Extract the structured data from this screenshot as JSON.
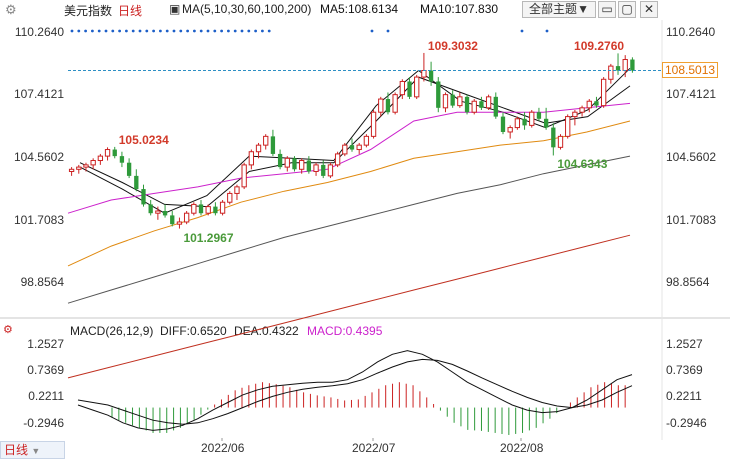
{
  "header": {
    "title": "美元指数",
    "period": "日线",
    "ma_label": "MA(5,10,30,60,100,200)",
    "ma5": "MA5:108.6134",
    "ma10": "MA10:107.830",
    "theme_button": "全部主题",
    "theme_button_arrow": "▼"
  },
  "macd_header": {
    "label": "MACD(26,12,9)",
    "diff": "DIFF:0.6520",
    "dea": "DEA:0.4322",
    "macd": "MACD:0.4395"
  },
  "footer": {
    "tab": "日线"
  },
  "colors": {
    "up": "#cc2222",
    "down": "#2e9a3a",
    "ma5": "#111111",
    "ma10": "#111111",
    "ma30": "#cc22cc",
    "ma60": "#e08a10",
    "ma100": "#555555",
    "ma200": "#c03020",
    "diff": "#111111",
    "dea": "#111111",
    "price_line": "#2d8fc4"
  },
  "chart_data": [
    {
      "type": "candlestick",
      "title": "美元指数",
      "y_ticks": [
        "110.2640",
        "107.4121",
        "104.5602",
        "101.7083",
        "98.8564"
      ],
      "ylim": [
        97.5,
        110.8
      ],
      "x_ticks": [
        "2022/06",
        "2022/07",
        "2022/08"
      ],
      "last_price": "108.5013",
      "annotations": [
        {
          "text": "105.0234",
          "kind": "high"
        },
        {
          "text": "101.2967",
          "kind": "low"
        },
        {
          "text": "109.3032",
          "kind": "high"
        },
        {
          "text": "104.6343",
          "kind": "low"
        },
        {
          "text": "109.2760",
          "kind": "high"
        }
      ],
      "ohlc": [
        [
          103.9,
          104.1,
          103.7,
          104.0
        ],
        [
          104.0,
          104.2,
          103.8,
          104.1
        ],
        [
          104.1,
          104.3,
          103.9,
          104.2
        ],
        [
          104.2,
          104.5,
          104.0,
          104.4
        ],
        [
          104.4,
          104.7,
          104.2,
          104.6
        ],
        [
          104.6,
          105.0,
          104.4,
          104.9
        ],
        [
          104.9,
          105.02,
          104.5,
          104.6
        ],
        [
          104.6,
          104.8,
          104.1,
          104.3
        ],
        [
          104.3,
          104.5,
          103.6,
          103.7
        ],
        [
          103.7,
          104.0,
          103.0,
          103.1
        ],
        [
          103.1,
          103.3,
          102.3,
          102.4
        ],
        [
          102.4,
          102.6,
          101.9,
          102.0
        ],
        [
          102.0,
          102.3,
          101.7,
          102.1
        ],
        [
          102.1,
          102.4,
          101.8,
          101.9
        ],
        [
          101.9,
          102.1,
          101.4,
          101.5
        ],
        [
          101.5,
          101.8,
          101.3,
          101.6
        ],
        [
          101.6,
          102.1,
          101.5,
          102.0
        ],
        [
          102.0,
          102.5,
          101.9,
          102.4
        ],
        [
          102.4,
          102.6,
          101.9,
          102.0
        ],
        [
          102.0,
          102.4,
          101.9,
          102.3
        ],
        [
          102.3,
          102.5,
          101.9,
          102.0
        ],
        [
          102.0,
          102.6,
          101.9,
          102.5
        ],
        [
          102.5,
          103.0,
          102.4,
          102.9
        ],
        [
          102.9,
          103.3,
          102.6,
          103.2
        ],
        [
          103.2,
          104.3,
          103.1,
          104.2
        ],
        [
          104.2,
          104.9,
          104.0,
          104.8
        ],
        [
          104.8,
          105.2,
          104.5,
          105.1
        ],
        [
          105.1,
          105.6,
          104.9,
          105.5
        ],
        [
          105.5,
          105.8,
          104.6,
          104.7
        ],
        [
          104.7,
          104.9,
          104.0,
          104.1
        ],
        [
          104.1,
          104.6,
          103.9,
          104.5
        ],
        [
          104.5,
          104.6,
          103.9,
          104.0
        ],
        [
          104.0,
          104.5,
          103.8,
          104.4
        ],
        [
          104.4,
          104.6,
          103.8,
          103.9
        ],
        [
          103.9,
          104.3,
          103.7,
          104.2
        ],
        [
          104.2,
          104.4,
          103.6,
          103.7
        ],
        [
          103.7,
          104.3,
          103.6,
          104.2
        ],
        [
          104.2,
          104.8,
          104.1,
          104.7
        ],
        [
          104.7,
          105.2,
          104.6,
          105.1
        ],
        [
          105.1,
          105.4,
          104.8,
          104.9
        ],
        [
          104.9,
          105.2,
          104.7,
          105.1
        ],
        [
          105.1,
          105.6,
          105.0,
          105.5
        ],
        [
          105.5,
          106.7,
          105.4,
          106.6
        ],
        [
          106.6,
          107.3,
          106.4,
          107.2
        ],
        [
          107.2,
          107.5,
          106.5,
          106.6
        ],
        [
          106.6,
          107.5,
          106.5,
          107.4
        ],
        [
          107.4,
          108.1,
          107.2,
          108.0
        ],
        [
          108.0,
          108.2,
          107.2,
          107.3
        ],
        [
          107.3,
          108.3,
          107.2,
          108.2
        ],
        [
          108.2,
          109.3,
          108.0,
          108.5
        ],
        [
          108.5,
          108.9,
          107.8,
          108.0
        ],
        [
          108.0,
          108.2,
          106.6,
          106.8
        ],
        [
          106.8,
          107.5,
          106.6,
          107.4
        ],
        [
          107.4,
          107.6,
          106.8,
          106.9
        ],
        [
          106.9,
          107.5,
          106.8,
          107.3
        ],
        [
          107.3,
          107.4,
          106.5,
          106.6
        ],
        [
          106.6,
          107.2,
          106.5,
          107.1
        ],
        [
          107.1,
          107.3,
          106.7,
          106.8
        ],
        [
          106.8,
          107.4,
          106.7,
          107.3
        ],
        [
          107.3,
          107.5,
          106.3,
          106.4
        ],
        [
          106.4,
          106.6,
          105.6,
          105.7
        ],
        [
          105.7,
          106.0,
          105.4,
          105.9
        ],
        [
          105.9,
          106.4,
          105.8,
          106.3
        ],
        [
          106.3,
          106.6,
          105.8,
          106.0
        ],
        [
          106.0,
          106.7,
          105.9,
          106.6
        ],
        [
          106.6,
          106.8,
          106.2,
          106.3
        ],
        [
          106.3,
          106.8,
          105.8,
          105.9
        ],
        [
          105.9,
          106.1,
          104.63,
          105.0
        ],
        [
          105.0,
          105.6,
          104.9,
          105.5
        ],
        [
          105.5,
          106.5,
          105.4,
          106.4
        ],
        [
          106.4,
          106.7,
          106.0,
          106.6
        ],
        [
          106.6,
          106.9,
          106.4,
          106.8
        ],
        [
          106.8,
          107.2,
          106.6,
          107.1
        ],
        [
          107.1,
          107.3,
          106.8,
          106.9
        ],
        [
          106.9,
          108.2,
          106.8,
          108.1
        ],
        [
          108.1,
          108.8,
          107.9,
          108.7
        ],
        [
          108.7,
          109.28,
          108.3,
          108.5
        ],
        [
          108.5,
          109.2,
          108.2,
          109.0
        ],
        [
          109.0,
          109.1,
          108.4,
          108.5
        ]
      ],
      "ma": [
        {
          "name": "MA5",
          "values": [
            104.1,
            103.1,
            102.0,
            102.8,
            104.6,
            104.5,
            104.4,
            106.9,
            108.5,
            107.1,
            106.6,
            105.9,
            106.7,
            108.6
          ]
        },
        {
          "name": "MA10",
          "values": [
            104.3,
            103.4,
            102.4,
            102.3,
            103.9,
            104.3,
            104.3,
            106.2,
            108.2,
            107.5,
            106.8,
            106.1,
            106.4,
            107.8
          ]
        },
        {
          "name": "MA30",
          "values": [
            102.0,
            102.6,
            102.9,
            103.2,
            103.6,
            103.8,
            104.0,
            104.9,
            106.2,
            106.6,
            106.6,
            106.6,
            106.8,
            107.0
          ]
        },
        {
          "name": "MA60",
          "values": [
            99.6,
            100.5,
            101.2,
            101.8,
            102.5,
            103.0,
            103.4,
            103.9,
            104.5,
            104.8,
            105.1,
            105.3,
            105.7,
            106.2
          ]
        },
        {
          "name": "MA100",
          "values": [
            97.9,
            98.5,
            99.1,
            99.7,
            100.3,
            100.9,
            101.4,
            101.9,
            102.4,
            102.9,
            103.3,
            103.8,
            104.2,
            104.6
          ]
        },
        {
          "name": "MA200",
          "values": [
            94.5,
            95.0,
            95.5,
            96.0,
            96.5,
            97.0,
            97.5,
            98.0,
            98.5,
            99.0,
            99.5,
            100.0,
            100.5,
            101.0
          ]
        }
      ]
    },
    {
      "type": "macd",
      "title": "MACD(26,12,9)",
      "y_ticks": [
        "1.2527",
        "0.7369",
        "0.2211",
        "-0.2946"
      ],
      "ylim": [
        -0.6,
        1.45
      ],
      "diff": [
        0.05,
        -0.05,
        -0.15,
        -0.3,
        -0.4,
        -0.45,
        -0.42,
        -0.35,
        -0.22,
        -0.05,
        0.1,
        0.25,
        0.35,
        0.42,
        0.45,
        0.48,
        0.5,
        0.5,
        0.55,
        0.7,
        0.9,
        1.05,
        1.12,
        1.05,
        0.9,
        0.7,
        0.5,
        0.35,
        0.2,
        0.05,
        -0.05,
        -0.1,
        -0.08,
        0.0,
        0.15,
        0.35,
        0.55,
        0.65
      ],
      "dea": [
        0.15,
        0.1,
        0.05,
        -0.05,
        -0.15,
        -0.25,
        -0.3,
        -0.33,
        -0.3,
        -0.22,
        -0.12,
        0.0,
        0.12,
        0.22,
        0.3,
        0.36,
        0.4,
        0.43,
        0.47,
        0.55,
        0.68,
        0.8,
        0.9,
        0.95,
        0.93,
        0.85,
        0.72,
        0.58,
        0.45,
        0.32,
        0.2,
        0.1,
        0.03,
        0.0,
        0.05,
        0.15,
        0.3,
        0.43
      ],
      "macd": [
        -0.2,
        -0.3,
        -0.4,
        -0.5,
        -0.5,
        -0.4,
        -0.24,
        -0.04,
        0.16,
        0.34,
        0.44,
        0.5,
        0.46,
        0.4,
        0.3,
        0.24,
        0.2,
        0.14,
        0.16,
        0.3,
        0.44,
        0.5,
        0.44,
        0.2,
        -0.06,
        -0.3,
        -0.44,
        -0.46,
        -0.5,
        -0.54,
        -0.5,
        -0.4,
        -0.22,
        0.0,
        0.2,
        0.4,
        0.5,
        0.44
      ]
    }
  ]
}
